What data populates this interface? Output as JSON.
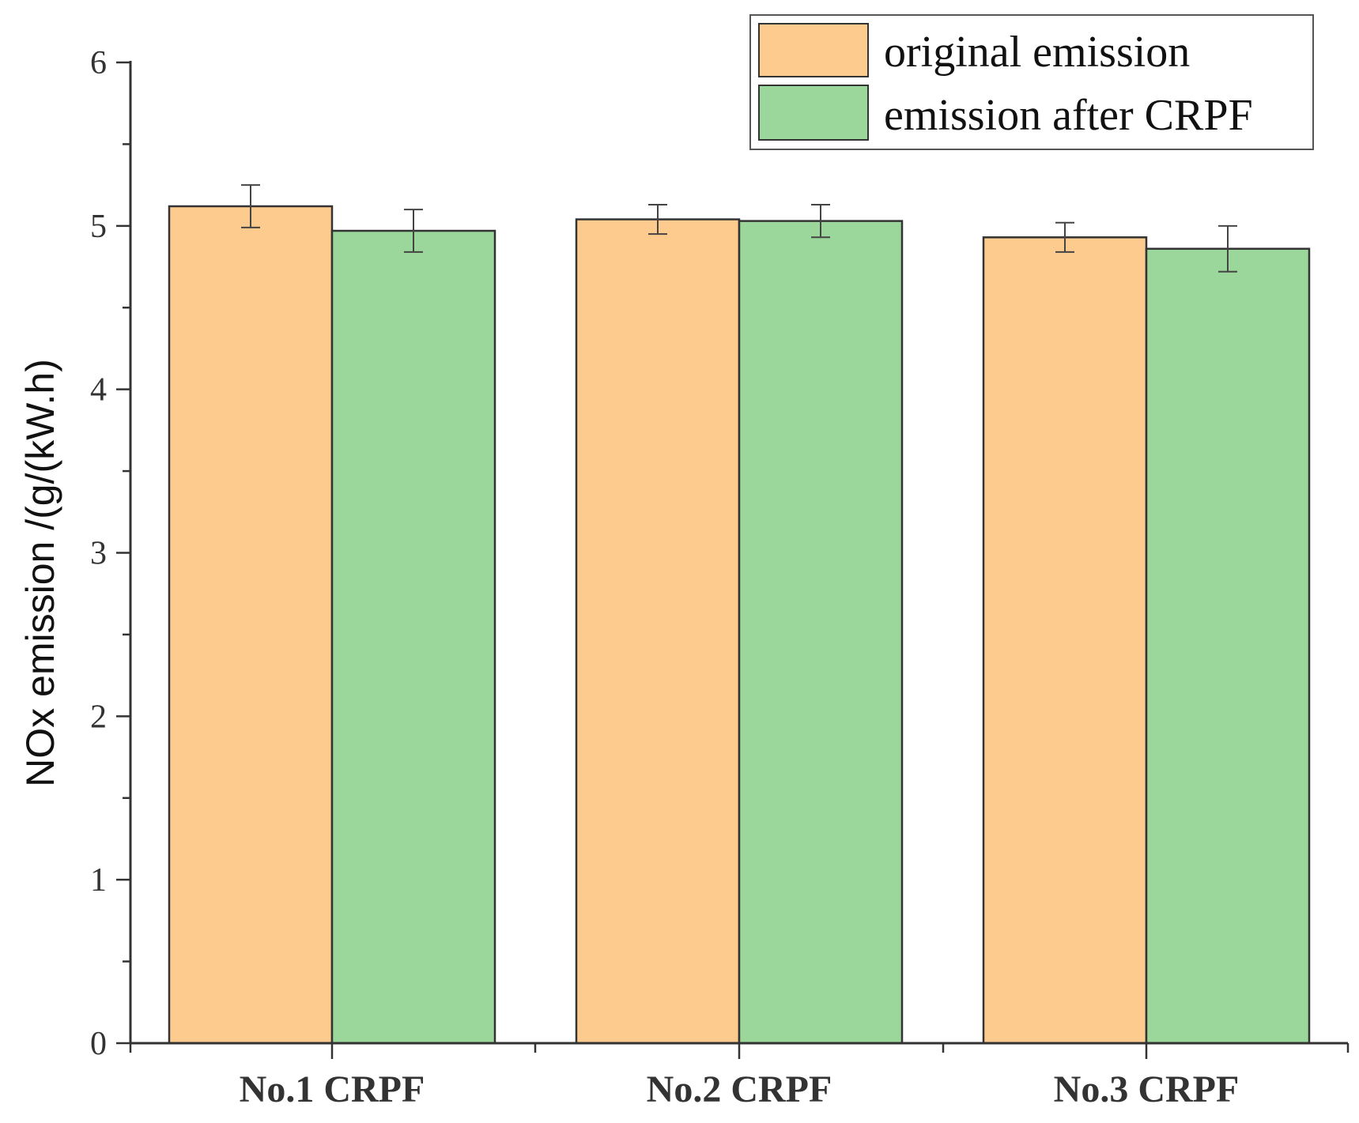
{
  "chart_data": {
    "type": "bar",
    "categories": [
      "No.1 CRPF",
      "No.2 CRPF",
      "No.3 CRPF"
    ],
    "series": [
      {
        "name": "original emission",
        "color": "#fecb8f",
        "values": [
          5.12,
          5.04,
          4.93
        ],
        "errors": [
          0.13,
          0.09,
          0.09
        ]
      },
      {
        "name": "emission after CRPF",
        "color": "#9bd69a",
        "values": [
          4.97,
          5.03,
          4.86
        ],
        "errors": [
          0.13,
          0.1,
          0.14
        ]
      }
    ],
    "title": "",
    "xlabel": "",
    "ylabel": "NOx emission /(g/(kW.h)",
    "ylim": [
      0,
      6
    ],
    "yticks": [
      0,
      1,
      2,
      3,
      4,
      5,
      6
    ],
    "legend_position": "top-right",
    "grid": false,
    "bar_edge_color": "#333333",
    "axis_color": "#333333"
  }
}
